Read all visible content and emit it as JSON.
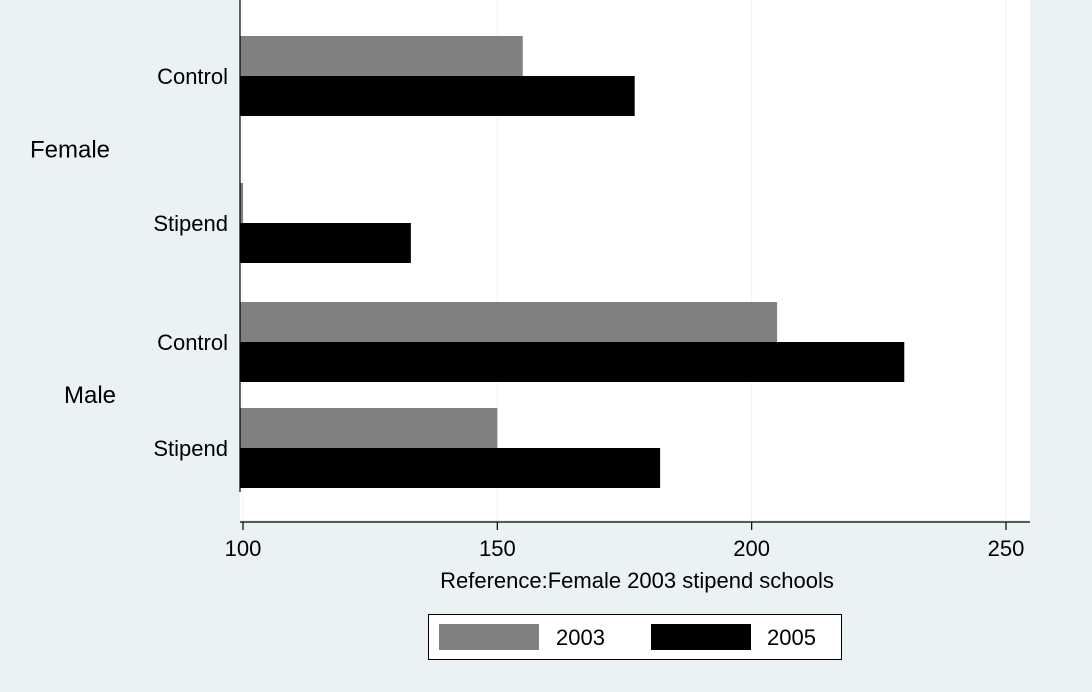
{
  "colors": {
    "background": "#eaf2f3",
    "plot_bg": "#ffffff",
    "series_2003": "#808080",
    "series_2005": "#000000",
    "grid": "#eaf2f3"
  },
  "chart_data": {
    "type": "bar",
    "orientation": "horizontal",
    "groups": [
      {
        "name": "Female",
        "categories": [
          "Control",
          "Stipend"
        ]
      },
      {
        "name": "Male",
        "categories": [
          "Control",
          "Stipend"
        ]
      }
    ],
    "categories": [
      "Female Control",
      "Female Stipend",
      "Male Control",
      "Male Stipend"
    ],
    "series": [
      {
        "name": "2003",
        "color": "#808080",
        "values": [
          155,
          100,
          205,
          150
        ]
      },
      {
        "name": "2005",
        "color": "#000000",
        "values": [
          177,
          133,
          230,
          182
        ]
      }
    ],
    "xlabel": "Reference:Female 2003 stipend schools",
    "xlim": [
      100,
      257
    ],
    "xticks": [
      100,
      150,
      200,
      250
    ],
    "grid": true,
    "legend_position": "bottom"
  }
}
